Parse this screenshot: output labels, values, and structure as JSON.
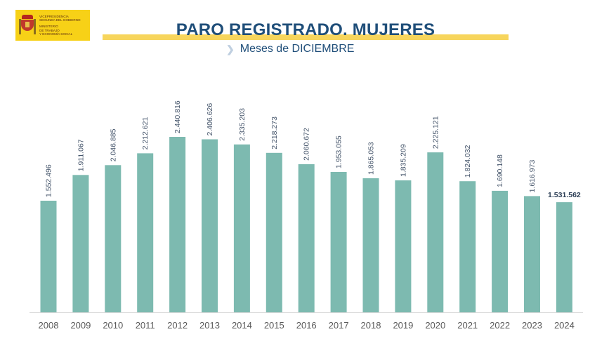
{
  "logo": {
    "line1": "VICEPRESIDENCIA",
    "line2": "SEGUNDA DEL GOBIERNO",
    "line3": "MINISTERIO",
    "line4": "DE TRABAJO",
    "line5": "Y ECONOMÍA SOCIAL"
  },
  "header": {
    "title": "PARO REGISTRADO. MUJERES",
    "subtitle": "Meses de DICIEMBRE"
  },
  "colors": {
    "bar": "#7dbab0",
    "title": "#1f4e79",
    "accent": "#f7d55c"
  },
  "chart_data": {
    "type": "bar",
    "categories": [
      "2008",
      "2009",
      "2010",
      "2011",
      "2012",
      "2013",
      "2014",
      "2015",
      "2016",
      "2017",
      "2018",
      "2019",
      "2020",
      "2021",
      "2022",
      "2023",
      "2024"
    ],
    "values": [
      1552496,
      1911067,
      2046885,
      2212621,
      2440816,
      2406626,
      2335203,
      2218273,
      2060672,
      1953055,
      1865053,
      1835209,
      2225121,
      1824032,
      1690148,
      1616973,
      1531562
    ],
    "labels": [
      "1.552.496",
      "1.911.067",
      "2.046.885",
      "2.212.621",
      "2.440.816",
      "2.406.626",
      "2.335.203",
      "2.218.273",
      "2.060.672",
      "1.953.055",
      "1.865.053",
      "1.835.209",
      "2.225.121",
      "1.824.032",
      "1.690.148",
      "1.616.973",
      "1.531.562"
    ],
    "title": "PARO REGISTRADO. MUJERES",
    "subtitle": "Meses de DICIEMBRE",
    "xlabel": "",
    "ylabel": "",
    "ylim": [
      0,
      2440816
    ],
    "grid": false,
    "legend": "none"
  }
}
